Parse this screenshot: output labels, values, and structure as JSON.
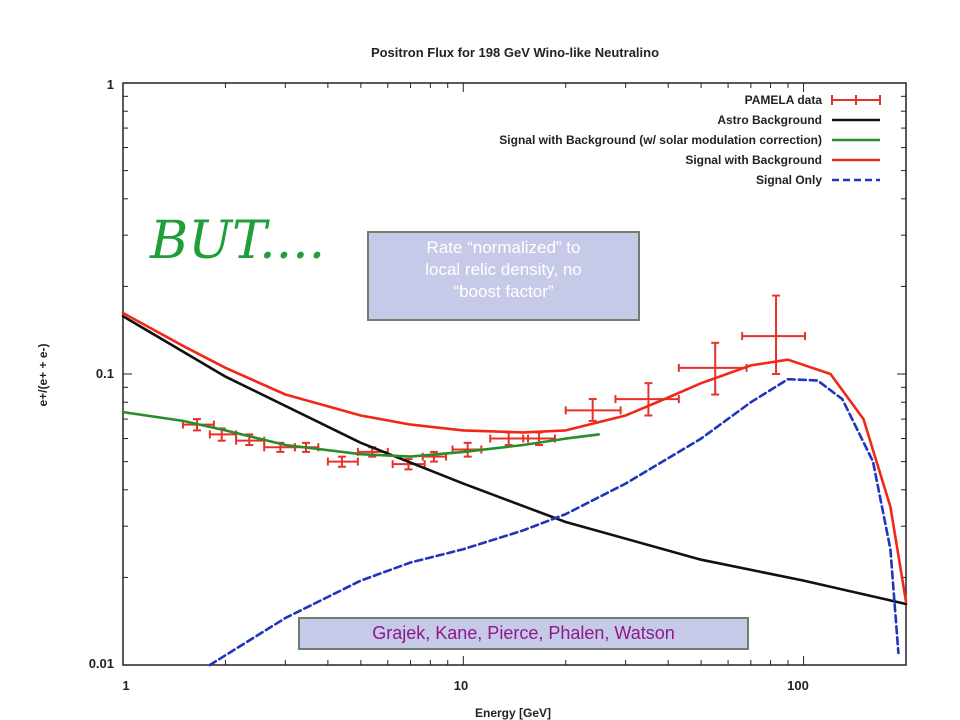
{
  "chart_data": {
    "type": "line",
    "title": "Positron Flux for 198 GeV Wino-like Neutralino",
    "xlabel": "Energy [GeV]",
    "ylabel": "e+/(e+ + e-)",
    "x_scale": "log",
    "y_scale": "log",
    "xlim": [
      1,
      200
    ],
    "ylim": [
      0.01,
      1
    ],
    "x_ticks": [
      "1",
      "10",
      "100"
    ],
    "y_ticks": [
      "0.01",
      "0.1",
      "1"
    ],
    "grid": false,
    "legend_position": "top-right",
    "legend": [
      {
        "label": "PAMELA data",
        "color": "#e8312a",
        "style": "errorbar"
      },
      {
        "label": "Astro Background",
        "color": "#111111",
        "style": "solid"
      },
      {
        "label": "Signal with Background (w/ solar modulation correction)",
        "color": "#2a8c2a",
        "style": "solid"
      },
      {
        "label": "Signal with Background",
        "color": "#f02818",
        "style": "solid"
      },
      {
        "label": "Signal Only",
        "color": "#2036b8",
        "style": "dashed"
      }
    ],
    "series": [
      {
        "name": "PAMELA data",
        "kind": "points",
        "points": [
          {
            "x": 1.65,
            "y": 0.067,
            "xlo": 1.5,
            "xhi": 1.85,
            "ylo": 0.064,
            "yhi": 0.07
          },
          {
            "x": 1.95,
            "y": 0.062,
            "xlo": 1.8,
            "xhi": 2.15,
            "ylo": 0.059,
            "yhi": 0.065
          },
          {
            "x": 2.35,
            "y": 0.059,
            "xlo": 2.15,
            "xhi": 2.6,
            "ylo": 0.057,
            "yhi": 0.062
          },
          {
            "x": 2.9,
            "y": 0.056,
            "xlo": 2.6,
            "xhi": 3.2,
            "ylo": 0.054,
            "yhi": 0.058
          },
          {
            "x": 3.45,
            "y": 0.056,
            "xlo": 3.2,
            "xhi": 3.75,
            "ylo": 0.054,
            "yhi": 0.058
          },
          {
            "x": 4.4,
            "y": 0.05,
            "xlo": 4.0,
            "xhi": 4.9,
            "ylo": 0.048,
            "yhi": 0.052
          },
          {
            "x": 5.4,
            "y": 0.054,
            "xlo": 4.9,
            "xhi": 6.0,
            "ylo": 0.052,
            "yhi": 0.056
          },
          {
            "x": 6.9,
            "y": 0.049,
            "xlo": 6.2,
            "xhi": 7.7,
            "ylo": 0.047,
            "yhi": 0.051
          },
          {
            "x": 8.2,
            "y": 0.052,
            "xlo": 7.6,
            "xhi": 8.9,
            "ylo": 0.05,
            "yhi": 0.054
          },
          {
            "x": 10.3,
            "y": 0.055,
            "xlo": 9.3,
            "xhi": 11.3,
            "ylo": 0.052,
            "yhi": 0.058
          },
          {
            "x": 13.6,
            "y": 0.06,
            "xlo": 12.0,
            "xhi": 15.5,
            "ylo": 0.057,
            "yhi": 0.063
          },
          {
            "x": 16.7,
            "y": 0.06,
            "xlo": 15.0,
            "xhi": 18.6,
            "ylo": 0.057,
            "yhi": 0.063
          },
          {
            "x": 24.0,
            "y": 0.075,
            "xlo": 20.0,
            "xhi": 29.0,
            "ylo": 0.069,
            "yhi": 0.082
          },
          {
            "x": 35.0,
            "y": 0.082,
            "xlo": 28.0,
            "xhi": 43.0,
            "ylo": 0.072,
            "yhi": 0.093
          },
          {
            "x": 55.0,
            "y": 0.105,
            "xlo": 43.0,
            "xhi": 68.0,
            "ylo": 0.085,
            "yhi": 0.128
          },
          {
            "x": 83.0,
            "y": 0.135,
            "xlo": 66.0,
            "xhi": 101.0,
            "ylo": 0.1,
            "yhi": 0.186
          }
        ]
      },
      {
        "name": "Astro Background",
        "kind": "line",
        "x": [
          1,
          2,
          5,
          10,
          20,
          50,
          100,
          200
        ],
        "y": [
          0.158,
          0.098,
          0.058,
          0.042,
          0.031,
          0.023,
          0.0195,
          0.0162
        ]
      },
      {
        "name": "Signal with Background (w/ solar modulation correction)",
        "kind": "line",
        "x": [
          1,
          1.5,
          2,
          3,
          5,
          7,
          10,
          15,
          20,
          25
        ],
        "y": [
          0.074,
          0.069,
          0.064,
          0.057,
          0.053,
          0.052,
          0.054,
          0.057,
          0.06,
          0.062
        ]
      },
      {
        "name": "Signal with Background",
        "kind": "line",
        "x": [
          1,
          1.5,
          2,
          3,
          5,
          7,
          10,
          15,
          20,
          30,
          40,
          50,
          70,
          90,
          120,
          150,
          180,
          200
        ],
        "y": [
          0.162,
          0.125,
          0.105,
          0.085,
          0.072,
          0.067,
          0.064,
          0.063,
          0.064,
          0.072,
          0.083,
          0.093,
          0.107,
          0.112,
          0.1,
          0.07,
          0.035,
          0.0165
        ]
      },
      {
        "name": "Signal Only",
        "kind": "line",
        "x": [
          1.8,
          2,
          3,
          5,
          7,
          10,
          15,
          20,
          30,
          50,
          70,
          90,
          110,
          130,
          160,
          180,
          190
        ],
        "y": [
          0.01,
          0.0108,
          0.0145,
          0.0195,
          0.0225,
          0.025,
          0.029,
          0.033,
          0.042,
          0.06,
          0.08,
          0.096,
          0.095,
          0.082,
          0.05,
          0.025,
          0.011
        ]
      }
    ]
  },
  "annotations": {
    "handwritten": "BUT....",
    "note": [
      "Rate “normalized” to",
      "local relic density, no",
      "“boost factor”"
    ],
    "credit": "Grajek, Kane, Pierce, Phalen, Watson"
  }
}
